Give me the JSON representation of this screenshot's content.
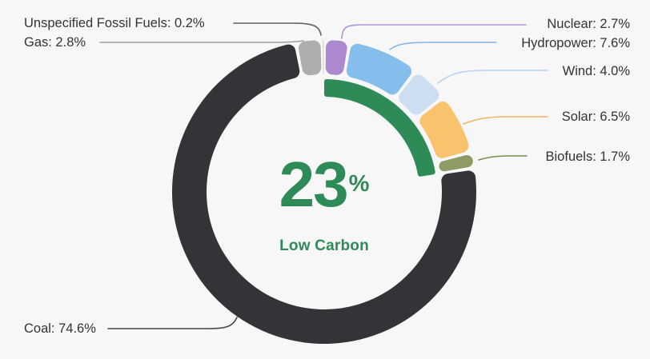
{
  "page": {
    "background": "#f7f7f8"
  },
  "chart_data": {
    "type": "donut",
    "unit": "%",
    "legend_position": "callout-labels",
    "center": {
      "value": "23",
      "unit": "%",
      "label": "Low Carbon",
      "color": "#2e8b57"
    },
    "low_carbon_arc": {
      "color": "#2e8b57",
      "value": 22.5,
      "covers": [
        "Nuclear",
        "Hydropower",
        "Wind",
        "Solar",
        "Biofuels"
      ]
    },
    "series": [
      {
        "name": "Nuclear",
        "value": 2.7,
        "label": "Nuclear: 2.7%",
        "color": "#ac89cf",
        "leader_color": "#b193d6",
        "low_carbon": true
      },
      {
        "name": "Hydropower",
        "value": 7.6,
        "label": "Hydropower: 7.6%",
        "color": "#85bdec",
        "leader_color": "#82b4e4",
        "low_carbon": true
      },
      {
        "name": "Wind",
        "value": 4.0,
        "label": "Wind: 4.0%",
        "color": "#cdddf2",
        "leader_color": "#b8d2f0",
        "low_carbon": true
      },
      {
        "name": "Solar",
        "value": 6.5,
        "label": "Solar: 6.5%",
        "color": "#f9c26d",
        "leader_color": "#f2b264",
        "low_carbon": true
      },
      {
        "name": "Biofuels",
        "value": 1.7,
        "label": "Biofuels: 1.7%",
        "color": "#8d9c64",
        "leader_color": "#748f4d",
        "low_carbon": true
      },
      {
        "name": "Coal",
        "value": 74.6,
        "label": "Coal: 74.6%",
        "color": "#343438",
        "leader_color": "#47474a",
        "low_carbon": false
      },
      {
        "name": "Gas",
        "value": 2.8,
        "label": "Gas: 2.8%",
        "color": "#aeaeae",
        "leader_color": "#9d9d9d",
        "low_carbon": false
      },
      {
        "name": "Unspecified Fossil Fuels",
        "value": 0.2,
        "label": "Unspecified Fossil Fuels: 0.2%",
        "color": "#c9c9c9",
        "leader_color": "#5f6063",
        "low_carbon": false
      }
    ]
  }
}
